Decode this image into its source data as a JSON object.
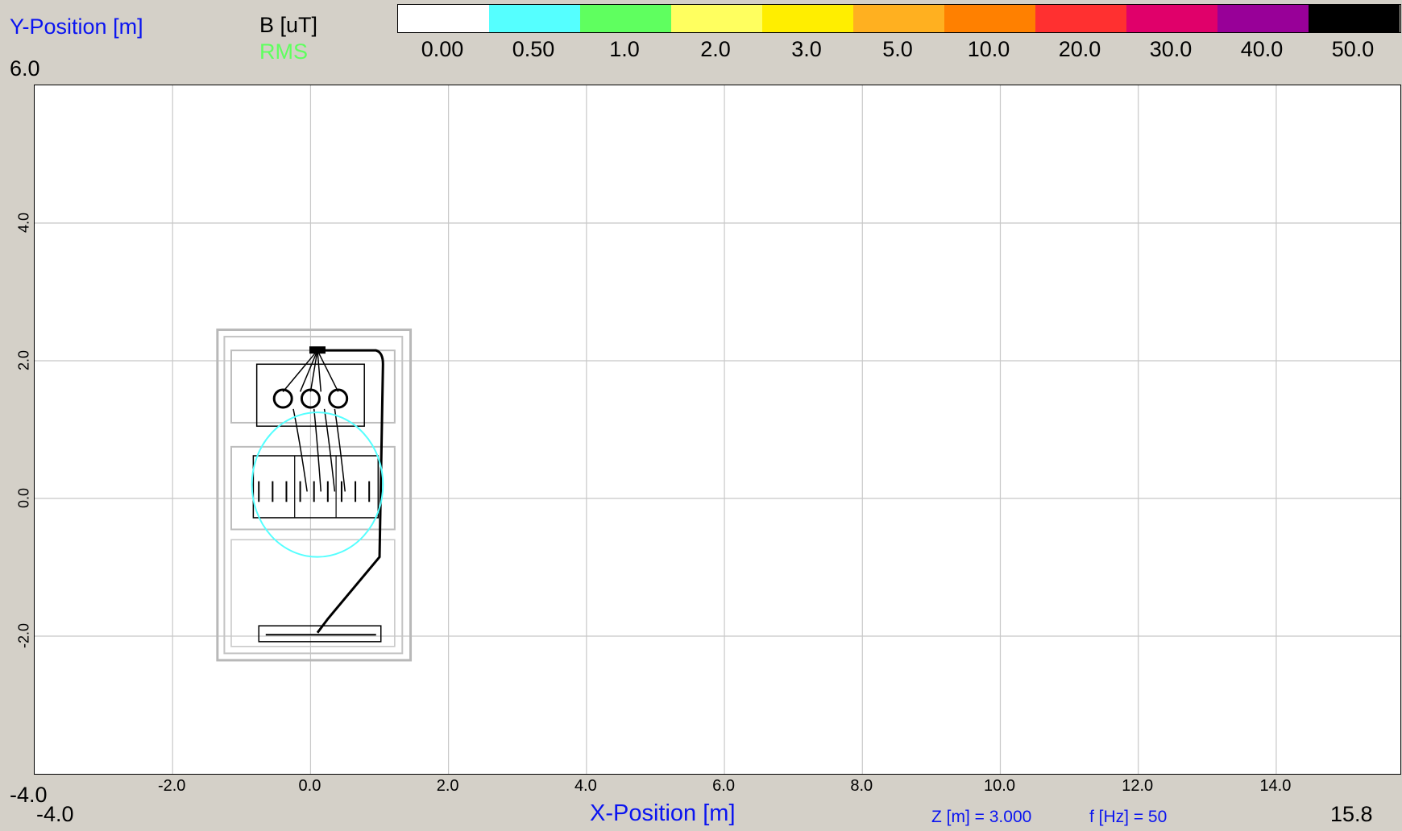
{
  "y_axis_title": "Y-Position [m]",
  "x_axis_title": "X-Position [m]",
  "quantity_label": "B [uT]",
  "mode_label": "RMS",
  "y_max_label": "6.0",
  "y_min_label": "-4.0",
  "x_min_label": "-4.0",
  "x_max_label": "15.8",
  "z_info": "Z [m] = 3.000",
  "f_info": "f [Hz] = 50",
  "legend": [
    {
      "label": "0.00",
      "color": "#ffffff"
    },
    {
      "label": "0.50",
      "color": "#55ffff"
    },
    {
      "label": "1.0",
      "color": "#5fff5f"
    },
    {
      "label": "2.0",
      "color": "#ffff5f"
    },
    {
      "label": "3.0",
      "color": "#ffee00"
    },
    {
      "label": "5.0",
      "color": "#ffb020"
    },
    {
      "label": "10.0",
      "color": "#ff8000"
    },
    {
      "label": "20.0",
      "color": "#ff3030"
    },
    {
      "label": "30.0",
      "color": "#e0006a"
    },
    {
      "label": "40.0",
      "color": "#980098"
    },
    {
      "label": "50.0",
      "color": "#000000"
    }
  ],
  "chart_data": {
    "type": "heatmap",
    "xlabel": "X-Position [m]",
    "ylabel": "Y-Position [m]",
    "xlim": [
      -4.0,
      15.8
    ],
    "ylim": [
      -4.0,
      6.0
    ],
    "x_ticks": [
      -2.0,
      0.0,
      2.0,
      4.0,
      6.0,
      8.0,
      10.0,
      12.0,
      14.0
    ],
    "x_tick_labels": [
      "-2.0",
      "0.0",
      "2.0",
      "4.0",
      "6.0",
      "8.0",
      "10.0",
      "12.0",
      "14.0"
    ],
    "y_ticks": [
      -2.0,
      0.0,
      2.0,
      4.0
    ],
    "y_tick_labels": [
      "-2.0",
      "0.0",
      "2.0",
      "4.0"
    ],
    "grid": true,
    "contours": [
      {
        "level": 0.5,
        "color": "#55ffff",
        "shape": "ellipse",
        "center": [
          0.1,
          0.2
        ],
        "radii": [
          0.95,
          1.05
        ]
      }
    ]
  }
}
